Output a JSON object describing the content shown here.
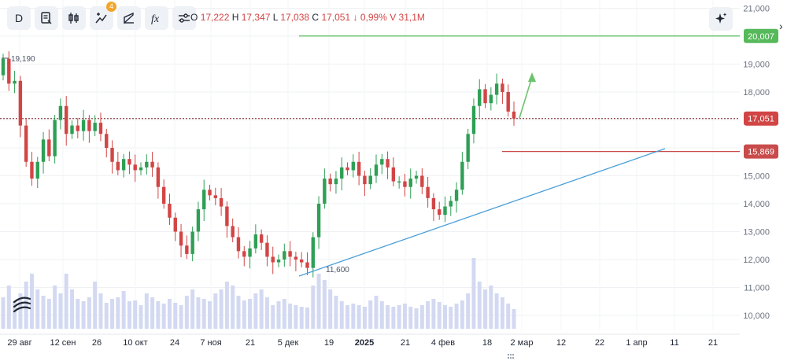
{
  "toolbar": {
    "interval_label": "D",
    "indicator_count": "4",
    "items": [
      "interval",
      "notes-icon",
      "candles-icon",
      "indicators-icon",
      "drawing-icon",
      "fx-icon",
      "settings-icon"
    ]
  },
  "ohlc": {
    "o_label": "O",
    "o_value": "17,222",
    "h_label": "H",
    "h_value": "17,347",
    "l_label": "L",
    "l_value": "17,038",
    "c_label": "C",
    "c_value": "17,051",
    "change": "↓ 0,99%",
    "v_label": "V",
    "v_value": "31,1M"
  },
  "colors": {
    "up": "#26a69a",
    "up_body": "#2e9f55",
    "down": "#d24545",
    "volume": "#d4d9f2",
    "trendline": "#4a9fd8",
    "level_green": "#56b95a",
    "level_red": "#c94b4b",
    "price_dotted": "#7a1f1f"
  },
  "chart_data": {
    "type": "candlestick",
    "y_ticks": [
      "21,000",
      "20,000",
      "19,000",
      "18,000",
      "17,000",
      "16,000",
      "15,000",
      "14,000",
      "13,000",
      "12,000",
      "11,000",
      "10,000"
    ],
    "ylim": [
      9600,
      21200
    ],
    "x_ticks": [
      {
        "label": "29 авг",
        "bold": false
      },
      {
        "label": "12 сен",
        "bold": false
      },
      {
        "label": "26",
        "bold": false
      },
      {
        "label": "10 окт",
        "bold": false
      },
      {
        "label": "24",
        "bold": false
      },
      {
        "label": "7 ноя",
        "bold": false
      },
      {
        "label": "21",
        "bold": false
      },
      {
        "label": "5 дек",
        "bold": false
      },
      {
        "label": "19",
        "bold": false
      },
      {
        "label": "2025",
        "bold": true
      },
      {
        "label": "21",
        "bold": false
      },
      {
        "label": "4 фев",
        "bold": false
      },
      {
        "label": "18",
        "bold": false
      },
      {
        "label": "2 мар",
        "bold": false
      },
      {
        "label": "12",
        "bold": false
      },
      {
        "label": "22",
        "bold": false
      },
      {
        "label": "1 апр",
        "bold": false
      },
      {
        "label": "11",
        "bold": false
      },
      {
        "label": "21",
        "bold": false
      }
    ],
    "price_labels": {
      "green_level": "20,007",
      "current": "17,051",
      "red_level": "15,869"
    },
    "annotations": {
      "high_label": "19,190",
      "low_label": "11,600"
    },
    "path": [
      19190,
      18300,
      18400,
      16800,
      15500,
      14900,
      15500,
      16300,
      15700,
      17000,
      17500,
      16500,
      16800,
      16600,
      17000,
      16600,
      16900,
      16500,
      16000,
      15500,
      15200,
      15600,
      15400,
      15200,
      15300,
      15500,
      15300,
      14600,
      14000,
      13500,
      13000,
      12500,
      12200,
      13000,
      13800,
      14500,
      14300,
      14200,
      13900,
      13200,
      12800,
      12300,
      12100,
      12400,
      12900,
      12600,
      12100,
      11900,
      12000,
      12300,
      12100,
      12000,
      11900,
      11700,
      12800,
      14000,
      14900,
      14700,
      14900,
      15300,
      15200,
      15500,
      15000,
      14700,
      15000,
      15400,
      15600,
      15300,
      14800,
      14800,
      14600,
      14900,
      15000,
      14600,
      14200,
      13800,
      13600,
      13900,
      14100,
      14500,
      15500,
      16500,
      17500,
      18100,
      17600,
      17900,
      18300,
      18000,
      17300,
      17051
    ],
    "volumes": [
      40,
      55,
      35,
      45,
      60,
      70,
      50,
      42,
      38,
      55,
      45,
      70,
      50,
      38,
      35,
      40,
      60,
      45,
      33,
      38,
      40,
      48,
      35,
      36,
      30,
      45,
      40,
      35,
      32,
      38,
      33,
      30,
      42,
      50,
      40,
      38,
      35,
      45,
      50,
      60,
      55,
      42,
      36,
      38,
      45,
      50,
      40,
      30,
      35,
      38,
      32,
      30,
      28,
      27,
      55,
      70,
      62,
      50,
      42,
      35,
      30,
      32,
      30,
      28,
      36,
      42,
      35,
      30,
      28,
      30,
      32,
      28,
      26,
      30,
      35,
      38,
      34,
      30,
      28,
      32,
      36,
      45,
      90,
      60,
      50,
      55,
      45,
      40,
      32,
      25
    ]
  }
}
